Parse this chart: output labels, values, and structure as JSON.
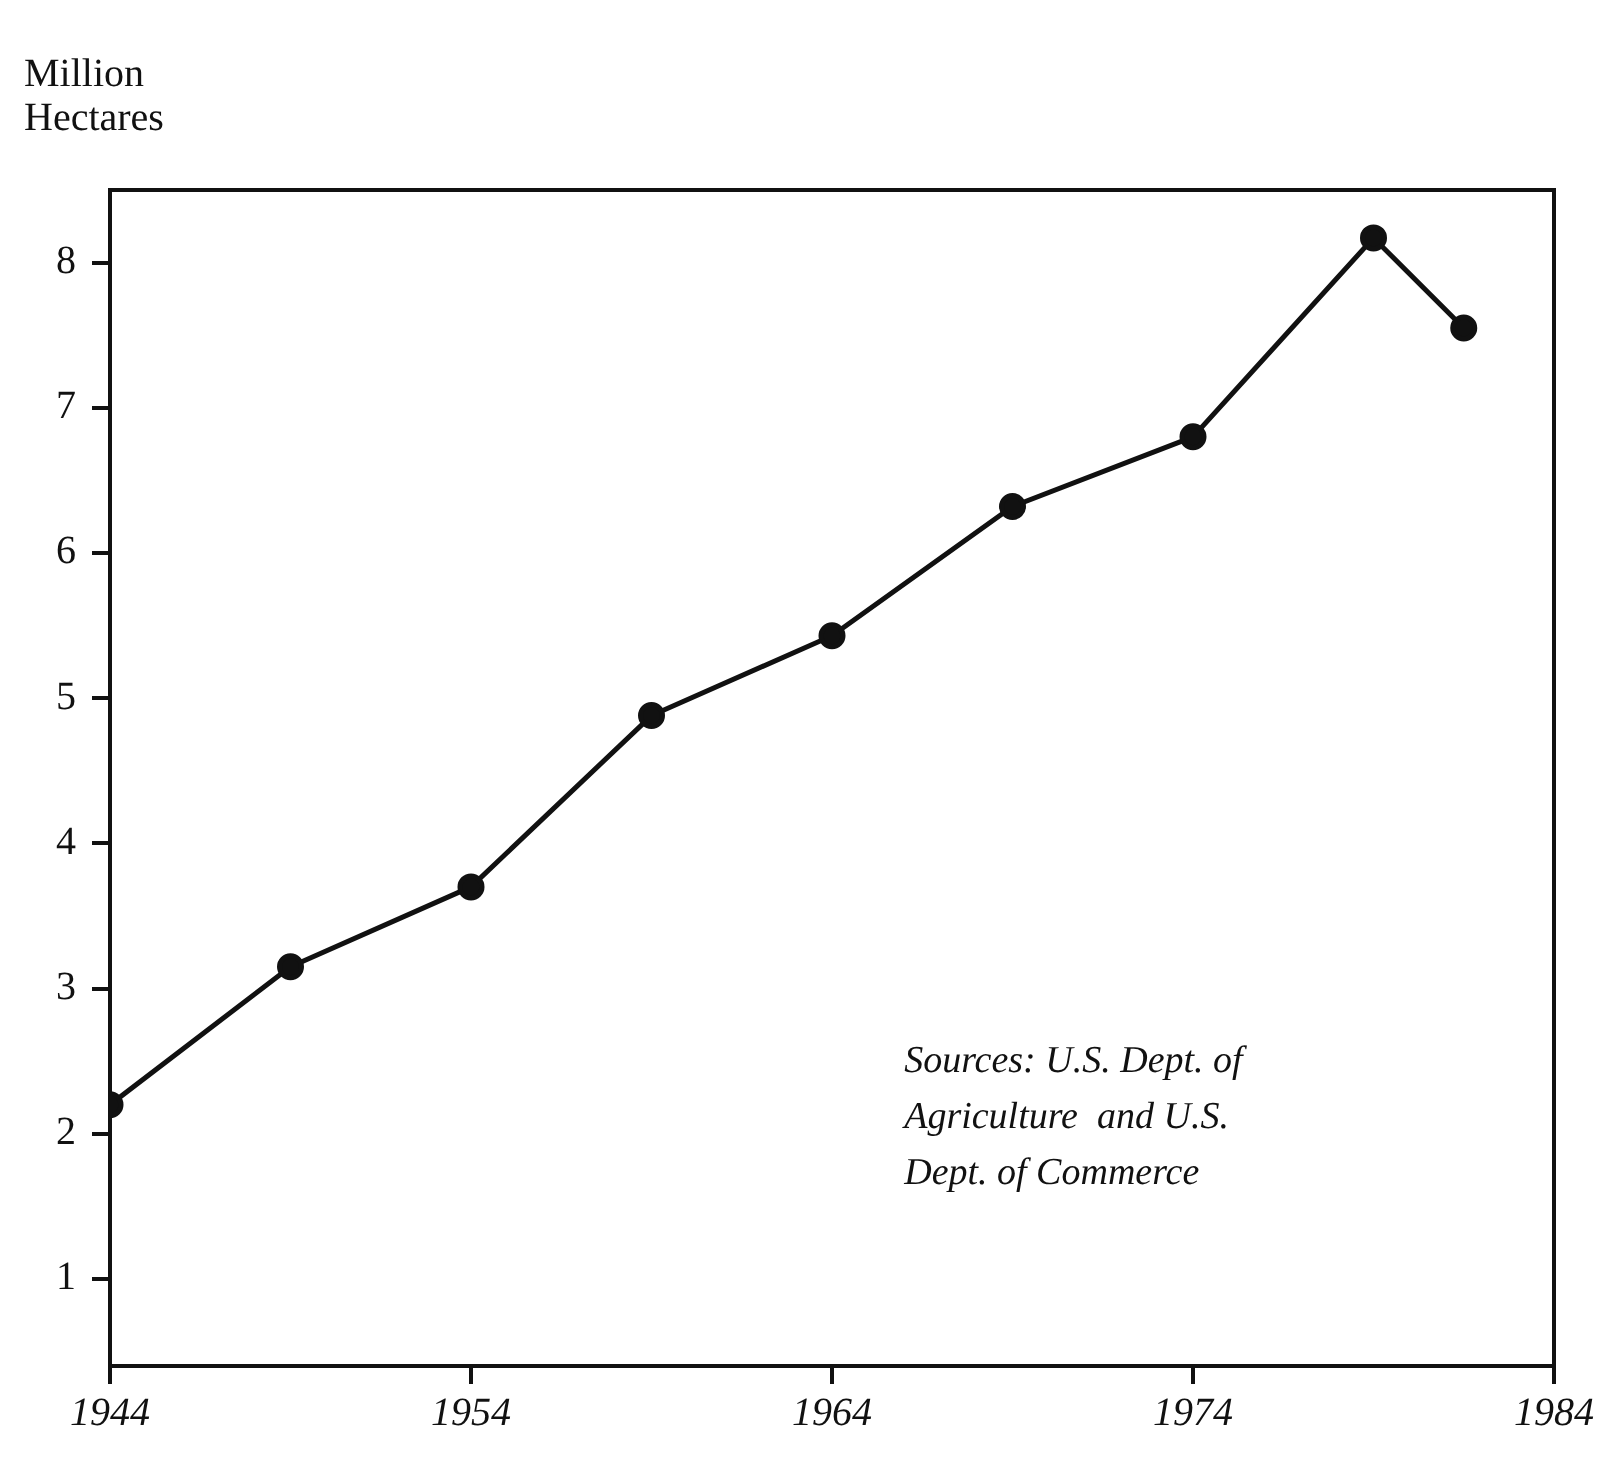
{
  "chart_data": {
    "type": "line",
    "ylabel": "Million\nHectares",
    "x": [
      1944,
      1949,
      1954,
      1959,
      1964,
      1969,
      1974,
      1979,
      1981.5
    ],
    "series": [
      {
        "color": "#111111",
        "values": [
          2.2,
          3.15,
          3.7,
          4.88,
          5.43,
          6.32,
          6.8,
          8.17,
          7.55
        ]
      }
    ],
    "xlim": [
      1944,
      1984
    ],
    "xticks": [
      1944,
      1954,
      1964,
      1974,
      1984
    ],
    "ylim": [
      0.4,
      8.5
    ],
    "yticks": [
      1,
      2,
      3,
      4,
      5,
      6,
      7,
      8
    ],
    "annotations": [
      "Sources: U.S. Dept. of\nAgriculture  and U.S.\nDept. of Commerce"
    ],
    "grid": false,
    "legend": false,
    "marker": "circle",
    "line_style": "solid"
  }
}
